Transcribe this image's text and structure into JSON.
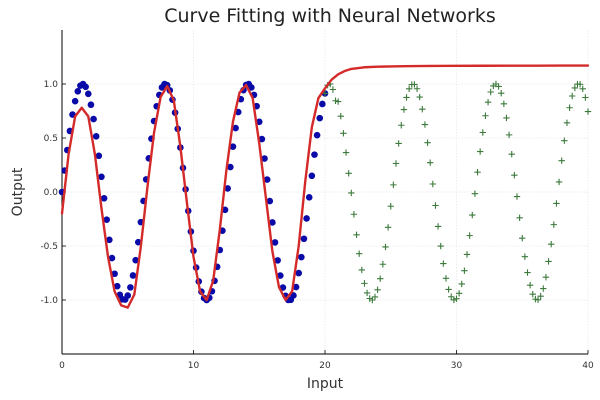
{
  "chart_data": {
    "type": "scatter",
    "title": "Curve Fitting with Neural Networks",
    "xlabel": "Input",
    "ylabel": "Output",
    "xlim": [
      0,
      40
    ],
    "ylim": [
      -1.5,
      1.5
    ],
    "xticks": [
      0,
      10,
      20,
      30,
      40
    ],
    "xtick_labels": [
      "0",
      "10",
      "20",
      "30",
      "40"
    ],
    "yticks": [
      -1.0,
      -0.5,
      0.0,
      0.5,
      1.0
    ],
    "ytick_labels": [
      "-1.0",
      "-0.5",
      "0.0",
      "0.5",
      "1.0"
    ],
    "grid": true,
    "legend": "none",
    "series": [
      {
        "kind": "scatter-circle",
        "color": "#0a0aa8",
        "x": [
          0.0,
          0.2,
          0.4,
          0.6,
          0.8,
          1.0,
          1.2,
          1.4,
          1.6,
          1.8,
          2.0,
          2.2,
          2.4,
          2.6,
          2.8,
          3.0,
          3.2,
          3.4,
          3.6,
          3.8,
          4.0,
          4.2,
          4.4,
          4.6,
          4.8,
          5.0,
          5.2,
          5.4,
          5.6,
          5.8,
          6.0,
          6.2,
          6.4,
          6.6,
          6.8,
          7.0,
          7.2,
          7.4,
          7.6,
          7.8,
          8.0,
          8.2,
          8.4,
          8.6,
          8.8,
          9.0,
          9.2,
          9.4,
          9.6,
          9.8,
          10.0,
          10.2,
          10.4,
          10.6,
          10.8,
          11.0,
          11.2,
          11.4,
          11.6,
          11.8,
          12.0,
          12.2,
          12.4,
          12.6,
          12.8,
          13.0,
          13.2,
          13.4,
          13.6,
          13.8,
          14.0,
          14.2,
          14.4,
          14.6,
          14.8,
          15.0,
          15.2,
          15.4,
          15.6,
          15.8,
          16.0,
          16.2,
          16.4,
          16.6,
          16.8,
          17.0,
          17.2,
          17.4,
          17.6,
          17.8,
          18.0,
          18.2,
          18.4,
          18.6,
          18.8,
          19.0,
          19.2,
          19.4,
          19.6,
          19.8,
          20.0
        ],
        "y": [
          0.0,
          0.199,
          0.389,
          0.565,
          0.717,
          0.841,
          0.932,
          0.985,
          1.0,
          0.974,
          0.909,
          0.808,
          0.675,
          0.516,
          0.335,
          0.141,
          -0.058,
          -0.256,
          -0.443,
          -0.612,
          -0.757,
          -0.872,
          -0.952,
          -0.994,
          -0.996,
          -0.959,
          -0.883,
          -0.773,
          -0.631,
          -0.465,
          -0.279,
          -0.083,
          0.117,
          0.312,
          0.494,
          0.657,
          0.794,
          0.899,
          0.968,
          0.999,
          0.989,
          0.941,
          0.855,
          0.735,
          0.585,
          0.412,
          0.223,
          0.025,
          -0.175,
          -0.366,
          -0.544,
          -0.7,
          -0.828,
          -0.923,
          -0.981,
          -1.0,
          -0.979,
          -0.919,
          -0.822,
          -0.693,
          -0.537,
          -0.358,
          -0.165,
          0.033,
          0.231,
          0.42,
          0.592,
          0.74,
          0.859,
          0.943,
          0.991,
          0.999,
          0.968,
          0.899,
          0.795,
          0.65,
          0.49,
          0.31,
          0.115,
          -0.084,
          -0.282,
          -0.467,
          -0.633,
          -0.774,
          -0.885,
          -0.961,
          -0.999,
          -0.998,
          -0.958,
          -0.88,
          -0.751,
          -0.603,
          -0.433,
          -0.245,
          -0.049,
          0.15,
          0.346,
          0.526,
          0.684,
          0.815,
          0.913
        ]
      },
      {
        "kind": "scatter-plus",
        "color": "#3c7a3c",
        "x": [
          20.0,
          20.2,
          20.4,
          20.6,
          20.8,
          21.0,
          21.2,
          21.4,
          21.6,
          21.8,
          22.0,
          22.2,
          22.4,
          22.6,
          22.8,
          23.0,
          23.2,
          23.4,
          23.6,
          23.8,
          24.0,
          24.2,
          24.4,
          24.6,
          24.8,
          25.0,
          25.2,
          25.4,
          25.6,
          25.8,
          26.0,
          26.2,
          26.4,
          26.6,
          26.8,
          27.0,
          27.2,
          27.4,
          27.6,
          27.8,
          28.0,
          28.2,
          28.4,
          28.6,
          28.8,
          29.0,
          29.2,
          29.4,
          29.6,
          29.8,
          30.0,
          30.2,
          30.4,
          30.6,
          30.8,
          31.0,
          31.2,
          31.4,
          31.6,
          31.8,
          32.0,
          32.2,
          32.4,
          32.6,
          32.8,
          33.0,
          33.2,
          33.4,
          33.6,
          33.8,
          34.0,
          34.2,
          34.4,
          34.6,
          34.8,
          35.0,
          35.2,
          35.4,
          35.6,
          35.8,
          36.0,
          36.2,
          36.4,
          36.6,
          36.8,
          37.0,
          37.2,
          37.4,
          37.6,
          37.8,
          38.0,
          38.2,
          38.4,
          38.6,
          38.8,
          39.0,
          39.2,
          39.4,
          39.6,
          39.8,
          40.0
        ],
        "y": [
          0.913,
          0.989,
          0.999,
          0.949,
          0.845,
          0.837,
          0.702,
          0.543,
          0.365,
          0.173,
          -0.009,
          -0.206,
          -0.396,
          -0.571,
          -0.722,
          -0.846,
          -0.935,
          -0.986,
          -1.0,
          -0.972,
          -0.906,
          -0.803,
          -0.669,
          -0.509,
          -0.327,
          -0.132,
          0.066,
          0.264,
          0.45,
          0.618,
          0.763,
          0.876,
          0.955,
          0.995,
          0.996,
          0.956,
          0.879,
          0.767,
          0.624,
          0.457,
          0.271,
          0.074,
          -0.125,
          -0.319,
          -0.501,
          -0.663,
          -0.799,
          -0.902,
          -0.97,
          -0.999,
          -0.988,
          -0.938,
          -0.851,
          -0.729,
          -0.578,
          -0.404,
          -0.214,
          -0.016,
          0.183,
          0.374,
          0.551,
          0.706,
          0.832,
          0.926,
          0.982,
          1.0,
          0.977,
          0.915,
          0.817,
          0.686,
          0.529,
          0.35,
          0.156,
          -0.042,
          -0.239,
          -0.428,
          -0.599,
          -0.746,
          -0.863,
          -0.946,
          -0.992,
          -0.998,
          -0.965,
          -0.894,
          -0.789,
          -0.643,
          -0.483,
          -0.302,
          -0.106,
          0.093,
          0.29,
          0.475,
          0.641,
          0.78,
          0.889,
          0.964,
          0.999,
          0.997,
          0.955,
          0.875,
          0.745
        ]
      },
      {
        "kind": "line",
        "color": "#d42a2a",
        "x": [
          0.0,
          0.5,
          1.0,
          1.5,
          2.0,
          2.5,
          3.0,
          3.5,
          4.0,
          4.5,
          5.0,
          5.5,
          6.0,
          6.5,
          7.0,
          7.5,
          8.0,
          8.5,
          9.0,
          9.5,
          10.0,
          10.5,
          11.0,
          11.5,
          12.0,
          12.5,
          13.0,
          13.5,
          14.0,
          14.5,
          15.0,
          15.5,
          16.0,
          16.5,
          17.0,
          17.5,
          18.0,
          18.5,
          19.0,
          19.5,
          20.0,
          20.5,
          21.0,
          21.5,
          22.0,
          23.0,
          24.0,
          25.0,
          26.0,
          28.0,
          30.0,
          32.0,
          34.0,
          36.0,
          38.0,
          40.0
        ],
        "y": [
          -0.2,
          0.35,
          0.7,
          0.78,
          0.7,
          0.35,
          -0.15,
          -0.6,
          -0.92,
          -1.05,
          -1.07,
          -0.95,
          -0.5,
          0.05,
          0.55,
          0.88,
          0.98,
          0.85,
          0.42,
          -0.1,
          -0.6,
          -0.92,
          -1.0,
          -0.82,
          -0.35,
          0.2,
          0.65,
          0.92,
          0.99,
          0.87,
          0.45,
          -0.05,
          -0.55,
          -0.88,
          -1.0,
          -0.92,
          -0.5,
          0.1,
          0.6,
          0.87,
          0.96,
          1.04,
          1.09,
          1.12,
          1.14,
          1.155,
          1.16,
          1.163,
          1.165,
          1.167,
          1.168,
          1.169,
          1.17,
          1.17,
          1.171,
          1.171
        ]
      }
    ]
  }
}
